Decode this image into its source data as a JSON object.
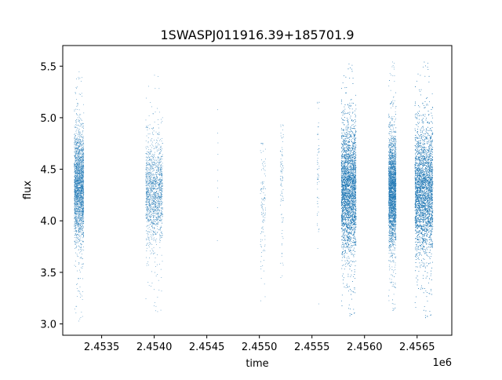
{
  "chart_data": {
    "type": "scatter",
    "title": "1SWASPJ011916.39+185701.9",
    "xlabel": "time",
    "ylabel": "flux",
    "x_offset_label": "1e6",
    "xlim": [
      2453130,
      2456830
    ],
    "ylim": [
      2.89,
      5.7
    ],
    "x_ticks": [
      2453500,
      2454000,
      2454500,
      2455000,
      2455500,
      2456000,
      2456500
    ],
    "x_tick_labels": [
      "2.4535",
      "2.4540",
      "2.4545",
      "2.4550",
      "2.4555",
      "2.4560",
      "2.4565"
    ],
    "y_ticks": [
      3.0,
      3.5,
      4.0,
      4.5,
      5.0,
      5.5
    ],
    "y_tick_labels": [
      "3.0",
      "3.5",
      "4.0",
      "4.5",
      "5.0",
      "5.5"
    ],
    "grid": false,
    "legend": false,
    "marker_color": "#1f77b4",
    "clusters": [
      {
        "x_start": 2453240,
        "x_end": 2453330,
        "y_center": 4.32,
        "y_spread": 0.26,
        "y_min": 3.02,
        "y_max": 5.45,
        "points": 2400
      },
      {
        "x_start": 2453920,
        "x_end": 2454080,
        "y_center": 4.28,
        "y_spread": 0.25,
        "y_min": 3.08,
        "y_max": 5.44,
        "points": 1500
      },
      {
        "x_start": 2454600,
        "x_end": 2454610,
        "y_center": 4.3,
        "y_spread": 0.4,
        "y_min": 3.79,
        "y_max": 5.12,
        "points": 10
      },
      {
        "x_start": 2455010,
        "x_end": 2455060,
        "y_center": 4.2,
        "y_spread": 0.35,
        "y_min": 3.07,
        "y_max": 4.75,
        "points": 120
      },
      {
        "x_start": 2455200,
        "x_end": 2455230,
        "y_center": 4.3,
        "y_spread": 0.35,
        "y_min": 3.45,
        "y_max": 4.93,
        "points": 90
      },
      {
        "x_start": 2455550,
        "x_end": 2455570,
        "y_center": 4.4,
        "y_spread": 0.4,
        "y_min": 3.12,
        "y_max": 5.15,
        "points": 60
      },
      {
        "x_start": 2455780,
        "x_end": 2455920,
        "y_center": 4.3,
        "y_spread": 0.3,
        "y_min": 3.05,
        "y_max": 5.55,
        "points": 6000
      },
      {
        "x_start": 2456230,
        "x_end": 2456300,
        "y_center": 4.28,
        "y_spread": 0.26,
        "y_min": 3.1,
        "y_max": 5.57,
        "points": 3200
      },
      {
        "x_start": 2456480,
        "x_end": 2456650,
        "y_center": 4.28,
        "y_spread": 0.3,
        "y_min": 3.03,
        "y_max": 5.57,
        "points": 6000
      }
    ]
  }
}
